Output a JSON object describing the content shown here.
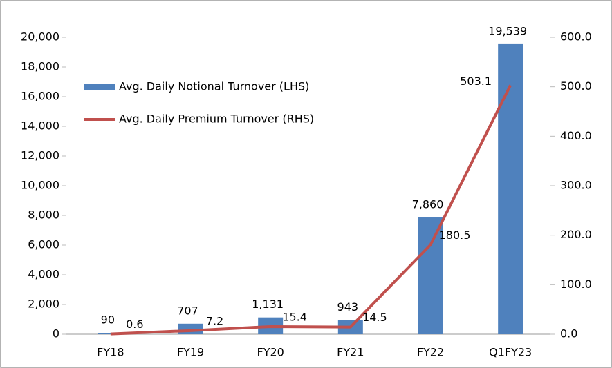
{
  "chart_data": {
    "type": "bar",
    "categories": [
      "FY18",
      "FY19",
      "FY20",
      "FY21",
      "FY22",
      "Q1FY23"
    ],
    "series": [
      {
        "name": "Avg. Daily Notional Turnover (LHS)",
        "type": "bar",
        "color": "#4f81bd",
        "values": [
          90,
          707,
          1131,
          943,
          7860,
          19539
        ],
        "value_labels": [
          "90",
          "707",
          "1,131",
          "943",
          "7,860",
          "19,539"
        ]
      },
      {
        "name": "Avg. Daily Premium Turnover (RHS)",
        "type": "line",
        "axis": "y2",
        "color": "#c0504d",
        "values": [
          0.6,
          7.2,
          15.4,
          14.5,
          180.5,
          503.1
        ],
        "value_labels": [
          "0.6",
          "7.2",
          "15.4",
          "14.5",
          "180.5",
          "503.1"
        ]
      }
    ],
    "ylim": [
      0,
      20000
    ],
    "yticks": [
      0,
      {
        "value": 2000,
        "label": "2,000"
      },
      {
        "value": 4000,
        "label": "4,000"
      },
      {
        "value": 6000,
        "label": "6,000"
      },
      {
        "value": 8000,
        "label": "8,000"
      },
      {
        "value": 10000,
        "label": "10,000"
      },
      {
        "value": 12000,
        "label": "12,000"
      },
      {
        "value": 14000,
        "label": "14,000"
      },
      {
        "value": 16000,
        "label": "16,000"
      },
      {
        "value": 18000,
        "label": "18,000"
      },
      {
        "value": 20000,
        "label": "20,000"
      }
    ],
    "y2lim": [
      0,
      600
    ],
    "y2ticks": [
      {
        "value": 0,
        "label": "0.0"
      },
      {
        "value": 100,
        "label": "100.0"
      },
      {
        "value": 200,
        "label": "200.0"
      },
      {
        "value": 300,
        "label": "300.0"
      },
      {
        "value": 400,
        "label": "400.0"
      },
      {
        "value": 500,
        "label": "500.0"
      },
      {
        "value": 600,
        "label": "600.0"
      }
    ],
    "grid": false,
    "legend": "top-left"
  }
}
